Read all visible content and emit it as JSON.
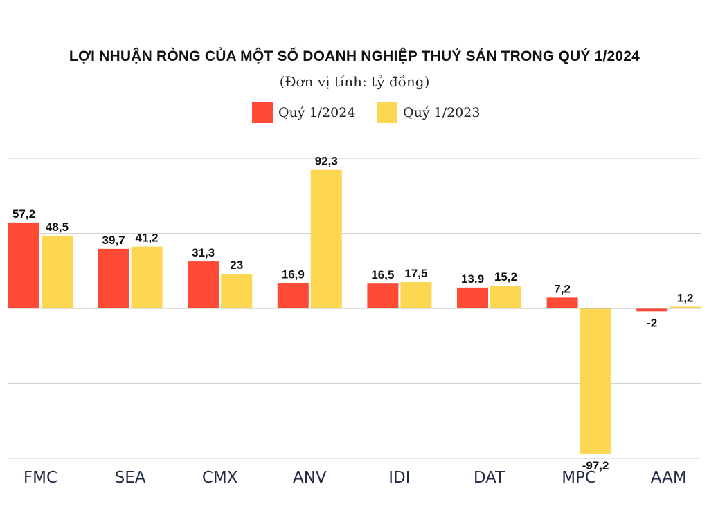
{
  "colors": {
    "q1_2024": "#ff4a36",
    "q1_2023": "#fdd752",
    "grid": "#d0d0d0",
    "text": "#111111"
  },
  "chart_data": {
    "type": "bar",
    "title": "LỢI NHUẬN RÒNG CỦA MỘT SỐ DOANH NGHIỆP THUỶ SẢN TRONG QUÝ 1/2024",
    "subtitle": "(Đơn vị tính: tỷ đồng)",
    "categories": [
      "FMC",
      "SEA",
      "CMX",
      "ANV",
      "IDI",
      "DAT",
      "MPC",
      "AAM"
    ],
    "series": [
      {
        "name": "Quý 1/2024",
        "values": [
          57.2,
          39.7,
          31.3,
          16.9,
          16.5,
          13.9,
          7.2,
          -2
        ],
        "labels": [
          "57,2",
          "39,7",
          "31,3",
          "16,9",
          "16,5",
          "13.9",
          "7,2",
          "-2"
        ]
      },
      {
        "name": "Quý 1/2023",
        "values": [
          48.5,
          41.2,
          23,
          92.3,
          17.5,
          15.2,
          -97.2,
          1.2
        ],
        "labels": [
          "48,5",
          "41,2",
          "23",
          "92,3",
          "17,5",
          "15,2",
          "-97,2",
          "1,2"
        ]
      }
    ],
    "ylim": [
      -100,
      100
    ],
    "grid": true,
    "legend": "top-center",
    "xlabel": "",
    "ylabel": ""
  }
}
